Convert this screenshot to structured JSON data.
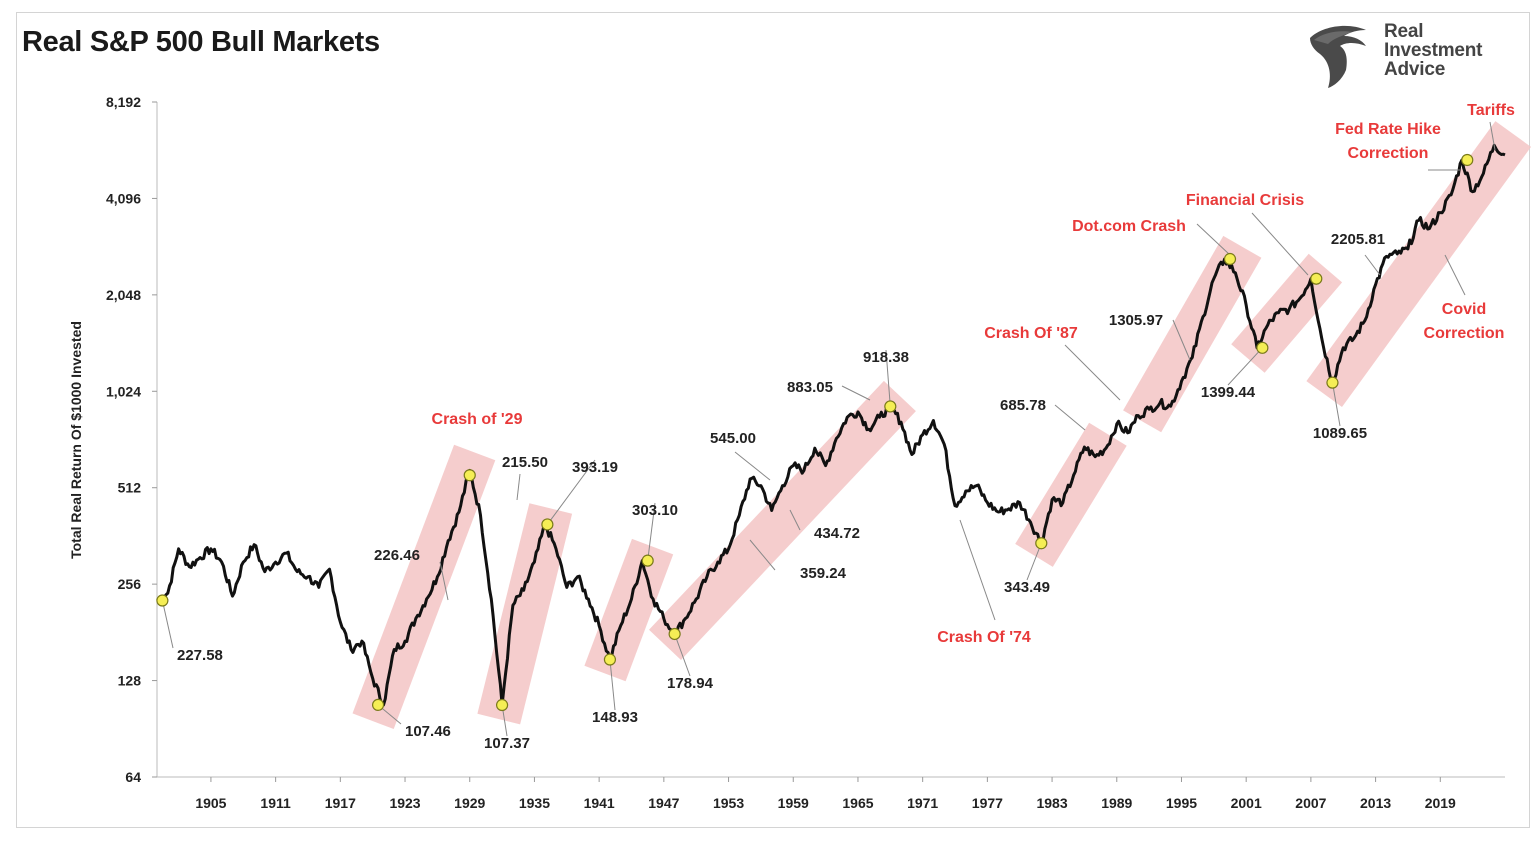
{
  "header": {
    "title": "Real S&P 500 Bull Markets"
  },
  "logo": {
    "line1": "Real",
    "line2": "Investment",
    "line3": "Advice",
    "icon": "eagle-head-icon"
  },
  "colors": {
    "series": "#111111",
    "band": "#f3c4c4",
    "marker_fill": "#f5ee55",
    "marker_stroke": "#7a7a1a",
    "event_text": "#e83a3a"
  },
  "chart_data": {
    "type": "line",
    "ylabel": "Total Real Return Of $1000 Invested",
    "xlabel": "",
    "y_scale": "log2",
    "ylim": [
      64,
      8192
    ],
    "xlim": [
      1900,
      2025
    ],
    "y_ticks": [
      {
        "value": 64,
        "label": "64"
      },
      {
        "value": 128,
        "label": "128"
      },
      {
        "value": 256,
        "label": "256"
      },
      {
        "value": 512,
        "label": "512"
      },
      {
        "value": 1024,
        "label": "1,024"
      },
      {
        "value": 2048,
        "label": "2,048"
      },
      {
        "value": 4096,
        "label": "4,096"
      },
      {
        "value": 8192,
        "label": "8,192"
      }
    ],
    "x_ticks": [
      "1905",
      "1911",
      "1917",
      "1923",
      "1929",
      "1935",
      "1941",
      "1947",
      "1953",
      "1959",
      "1965",
      "1971",
      "1977",
      "1983",
      "1989",
      "1995",
      "2001",
      "2007",
      "2013",
      "2019"
    ],
    "series": [
      {
        "points": [
          [
            1900,
            228
          ],
          [
            1901,
            240
          ],
          [
            1902,
            330
          ],
          [
            1903,
            290
          ],
          [
            1904,
            310
          ],
          [
            1905,
            330
          ],
          [
            1906,
            300
          ],
          [
            1907,
            235
          ],
          [
            1908,
            300
          ],
          [
            1909,
            340
          ],
          [
            1910,
            280
          ],
          [
            1911,
            300
          ],
          [
            1912,
            320
          ],
          [
            1913,
            280
          ],
          [
            1914,
            270
          ],
          [
            1915,
            250
          ],
          [
            1916,
            285
          ],
          [
            1917,
            195
          ],
          [
            1918,
            160
          ],
          [
            1919,
            170
          ],
          [
            1920,
            130
          ],
          [
            1921,
            107.46
          ],
          [
            1922,
            160
          ],
          [
            1923,
            170
          ],
          [
            1924,
            200
          ],
          [
            1925,
            230
          ],
          [
            1926,
            270
          ],
          [
            1927,
            350
          ],
          [
            1928,
            430
          ],
          [
            1929,
            580
          ],
          [
            1930,
            420
          ],
          [
            1931,
            230
          ],
          [
            1932,
            107.37
          ],
          [
            1933,
            220
          ],
          [
            1934,
            245
          ],
          [
            1935,
            300
          ],
          [
            1936,
            393.19
          ],
          [
            1937,
            330
          ],
          [
            1938,
            250
          ],
          [
            1939,
            270
          ],
          [
            1940,
            230
          ],
          [
            1941,
            190
          ],
          [
            1942,
            148.93
          ],
          [
            1943,
            190
          ],
          [
            1944,
            230
          ],
          [
            1945,
            303.1
          ],
          [
            1946,
            230
          ],
          [
            1947,
            200
          ],
          [
            1948,
            178.94
          ],
          [
            1949,
            200
          ],
          [
            1950,
            230
          ],
          [
            1951,
            270
          ],
          [
            1952,
            300
          ],
          [
            1953,
            330
          ],
          [
            1954,
            420
          ],
          [
            1955,
            545
          ],
          [
            1956,
            520
          ],
          [
            1957,
            434.72
          ],
          [
            1958,
            520
          ],
          [
            1959,
            600
          ],
          [
            1960,
            580
          ],
          [
            1961,
            680
          ],
          [
            1962,
            600
          ],
          [
            1963,
            730
          ],
          [
            1964,
            850
          ],
          [
            1965,
            883.05
          ],
          [
            1966,
            780
          ],
          [
            1967,
            850
          ],
          [
            1968,
            918.38
          ],
          [
            1969,
            820
          ],
          [
            1970,
            650
          ],
          [
            1971,
            750
          ],
          [
            1972,
            830
          ],
          [
            1973,
            700
          ],
          [
            1974,
            450
          ],
          [
            1975,
            500
          ],
          [
            1976,
            520
          ],
          [
            1977,
            460
          ],
          [
            1978,
            430
          ],
          [
            1979,
            440
          ],
          [
            1980,
            460
          ],
          [
            1981,
            400
          ],
          [
            1982,
            343.49
          ],
          [
            1983,
            470
          ],
          [
            1984,
            460
          ],
          [
            1985,
            560
          ],
          [
            1986,
            685.78
          ],
          [
            1987,
            640
          ],
          [
            1988,
            680
          ],
          [
            1989,
            810
          ],
          [
            1990,
            760
          ],
          [
            1991,
            860
          ],
          [
            1992,
            900
          ],
          [
            1993,
            940
          ],
          [
            1994,
            920
          ],
          [
            1995,
            1100
          ],
          [
            1996,
            1305.97
          ],
          [
            1997,
            1750
          ],
          [
            1998,
            2300
          ],
          [
            1999,
            2650
          ],
          [
            2000,
            2400
          ],
          [
            2001,
            1900
          ],
          [
            2002,
            1399.44
          ],
          [
            2003,
            1650
          ],
          [
            2004,
            1800
          ],
          [
            2005,
            1850
          ],
          [
            2006,
            2000
          ],
          [
            2007,
            2300
          ],
          [
            2008,
            1500
          ],
          [
            2009,
            1089.65
          ],
          [
            2010,
            1400
          ],
          [
            2011,
            1500
          ],
          [
            2012,
            1700
          ],
          [
            2013,
            2205.81
          ],
          [
            2014,
            2700
          ],
          [
            2015,
            2750
          ],
          [
            2016,
            2850
          ],
          [
            2017,
            3500
          ],
          [
            2018,
            3300
          ],
          [
            2019,
            3700
          ],
          [
            2020,
            4200
          ],
          [
            2021,
            5400
          ],
          [
            2022,
            4300
          ],
          [
            2023,
            4900
          ],
          [
            2024,
            6000
          ],
          [
            2025,
            5600
          ]
        ]
      }
    ],
    "bands": [
      {
        "x0": 1920.5,
        "y0": 105,
        "x1": 1929,
        "y1": 600
      },
      {
        "x0": 1932,
        "y0": 107,
        "x1": 1936.2,
        "y1": 400
      },
      {
        "x0": 1942,
        "y0": 148,
        "x1": 1945.5,
        "y1": 305
      },
      {
        "x0": 1948,
        "y0": 178,
        "x1": 1968,
        "y1": 920
      },
      {
        "x0": 1982,
        "y0": 343,
        "x1": 1987.5,
        "y1": 690
      },
      {
        "x0": 1992,
        "y0": 900,
        "x1": 2000,
        "y1": 2650
      },
      {
        "x0": 2002,
        "y0": 1399,
        "x1": 2007.5,
        "y1": 2300
      },
      {
        "x0": 2009,
        "y0": 1089,
        "x1": 2025,
        "y1": 6000
      }
    ],
    "markers": [
      {
        "x": 1900.5,
        "y": 227.58,
        "label": "227.58"
      },
      {
        "x": 1920.5,
        "y": 107.46,
        "label": "107.46"
      },
      {
        "x": 1929,
        "y": 560,
        "label": ""
      },
      {
        "x": 1932,
        "y": 107.37,
        "label": "107.37"
      },
      {
        "x": 1936.2,
        "y": 393.19,
        "label": "393.19"
      },
      {
        "x": 1942,
        "y": 148.93,
        "label": "148.93"
      },
      {
        "x": 1945.5,
        "y": 303.1,
        "label": "303.10"
      },
      {
        "x": 1948,
        "y": 178.94,
        "label": "178.94"
      },
      {
        "x": 1968,
        "y": 918.38,
        "label": "918.38"
      },
      {
        "x": 1982,
        "y": 343.49,
        "label": "343.49"
      },
      {
        "x": 1999.5,
        "y": 2650,
        "label": ""
      },
      {
        "x": 2002.5,
        "y": 1399.44,
        "label": "1399.44"
      },
      {
        "x": 2007.5,
        "y": 2300,
        "label": ""
      },
      {
        "x": 2009,
        "y": 1089.65,
        "label": "1089.65"
      },
      {
        "x": 2021.5,
        "y": 5400,
        "label": ""
      }
    ],
    "value_labels": [
      {
        "x": 1925.5,
        "y": 226.46,
        "text": "226.46"
      },
      {
        "x": 1932.6,
        "y": 215.5,
        "text": "215.50"
      },
      {
        "x": 1955,
        "y": 545,
        "text": "545.00"
      },
      {
        "x": 1957,
        "y": 434.72,
        "text": "434.72"
      },
      {
        "x": 1953.5,
        "y": 359.24,
        "text": "359.24"
      },
      {
        "x": 1965,
        "y": 883.05,
        "text": "883.05"
      },
      {
        "x": 1986,
        "y": 685.78,
        "text": "685.78"
      },
      {
        "x": 1996,
        "y": 1305.97,
        "text": "1305.97"
      },
      {
        "x": 2013,
        "y": 2205.81,
        "text": "2205.81"
      }
    ],
    "events": [
      {
        "text": "Crash of '29"
      },
      {
        "text": "Crash Of '74"
      },
      {
        "text": "Crash Of '87"
      },
      {
        "text": "Dot.com Crash"
      },
      {
        "text": "Financial Crisis"
      },
      {
        "text": "Fed Rate Hike"
      },
      {
        "text": "Correction"
      },
      {
        "text": "Covid"
      },
      {
        "text": "Correction"
      },
      {
        "text": "Tariffs"
      }
    ]
  }
}
